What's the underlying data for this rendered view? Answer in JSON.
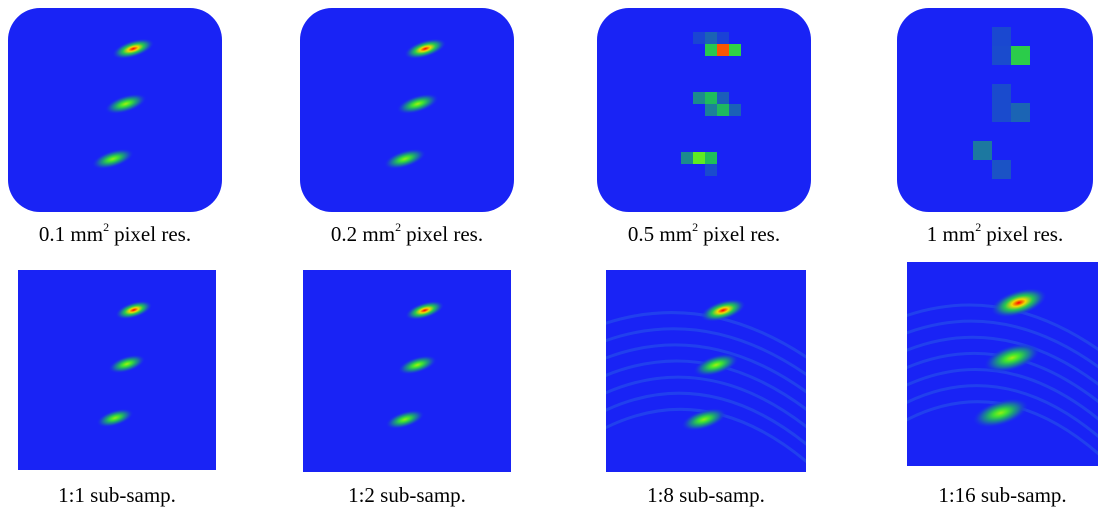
{
  "top_row": [
    {
      "caption": {
        "text": "0.1 mm",
        "superscript": "2",
        "suffix": "pixel res."
      }
    },
    {
      "caption": {
        "text": "0.2 mm",
        "superscript": "2",
        "suffix": "pixel res."
      }
    },
    {
      "caption": {
        "text": "0.5 mm",
        "superscript": "2",
        "suffix": "pixel res."
      }
    },
    {
      "caption": {
        "text": "1 mm",
        "superscript": "2",
        "suffix": "pixel res."
      }
    }
  ],
  "bottom_row": [
    {
      "caption": "1:1 sub-samp."
    },
    {
      "caption": "1:2 sub-samp."
    },
    {
      "caption": "1:8 sub-samp."
    },
    {
      "caption": "1:16 sub-samp."
    }
  ]
}
